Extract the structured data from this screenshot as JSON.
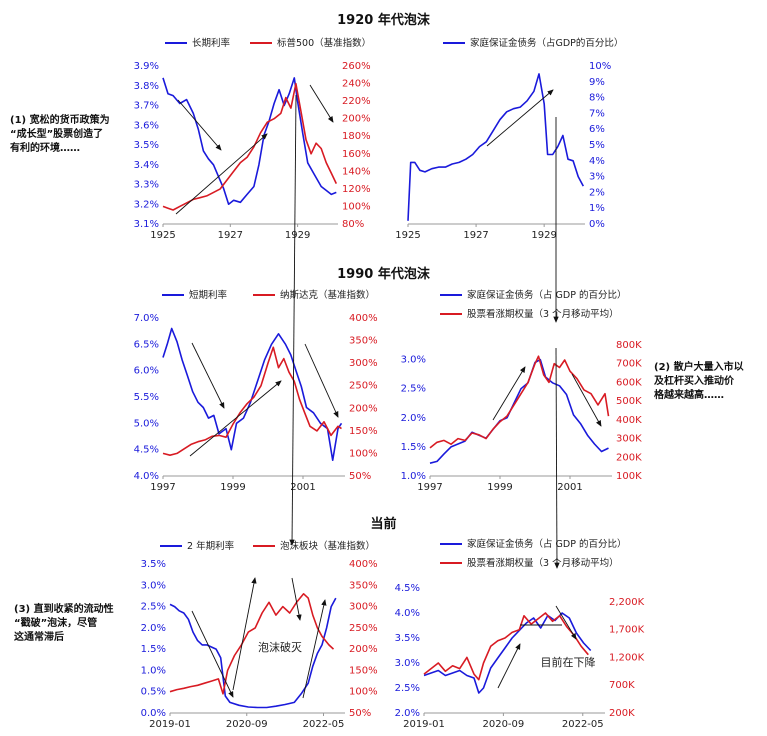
{
  "sections": {
    "s1920": "1920 年代泡沫",
    "s1990": "1990 年代泡沫",
    "now": "当前"
  },
  "side_notes": [
    {
      "lines": [
        "(1) 宽松的货币政策为",
        "“成长型”股票创造了",
        "有利的环境……"
      ]
    },
    {
      "lines": [
        "(2) 散户大量入市以",
        "及杠杆买入推动价",
        "格越来越高……"
      ]
    },
    {
      "lines": [
        "(3) 直到收紧的流动性",
        "“戳破”泡沫，尽管",
        "这通常滞后"
      ]
    }
  ],
  "colors": {
    "blue": "#1a1adb",
    "red": "#d81b23",
    "black": "#111111"
  },
  "chart_data": [
    {
      "type": "line",
      "legend": [
        "长期利率",
        "标普500（基准指数）"
      ],
      "x_ticks": [
        "1925",
        "1927",
        "1929"
      ],
      "xlim": [
        1925,
        1930.2
      ],
      "left_axis": {
        "ticks": [
          "3.1%",
          "3.2%",
          "3.3%",
          "3.4%",
          "3.5%",
          "3.6%",
          "3.7%",
          "3.8%",
          "3.9%"
        ],
        "ylim": [
          3.1,
          3.9
        ]
      },
      "right_axis": {
        "ticks": [
          "80%",
          "100%",
          "120%",
          "140%",
          "160%",
          "180%",
          "200%",
          "220%",
          "240%",
          "260%"
        ],
        "ylim": [
          80,
          260
        ]
      },
      "series": [
        {
          "name": "长期利率",
          "axis": "left",
          "color": "blue",
          "x": [
            1925.0,
            1925.15,
            1925.3,
            1925.5,
            1925.7,
            1925.9,
            1926.05,
            1926.2,
            1926.35,
            1926.5,
            1926.65,
            1926.8,
            1926.95,
            1927.1,
            1927.3,
            1927.5,
            1927.7,
            1927.85,
            1928.0,
            1928.15,
            1928.3,
            1928.45,
            1928.6,
            1928.75,
            1928.9,
            1929.0,
            1929.15,
            1929.3,
            1929.5,
            1929.7,
            1929.85,
            1930.0,
            1930.15
          ],
          "y": [
            3.84,
            3.76,
            3.75,
            3.71,
            3.73,
            3.66,
            3.58,
            3.47,
            3.43,
            3.4,
            3.34,
            3.28,
            3.2,
            3.22,
            3.21,
            3.25,
            3.29,
            3.4,
            3.55,
            3.62,
            3.71,
            3.78,
            3.7,
            3.76,
            3.84,
            3.72,
            3.56,
            3.41,
            3.35,
            3.29,
            3.27,
            3.25,
            3.26
          ]
        },
        {
          "name": "标普500（基准指数）",
          "axis": "right",
          "color": "red",
          "x": [
            1925.0,
            1925.15,
            1925.3,
            1925.5,
            1925.7,
            1925.9,
            1926.1,
            1926.3,
            1926.5,
            1926.7,
            1926.9,
            1927.1,
            1927.3,
            1927.5,
            1927.7,
            1927.9,
            1928.1,
            1928.3,
            1928.5,
            1928.65,
            1928.8,
            1928.95,
            1929.1,
            1929.25,
            1929.4,
            1929.55,
            1929.7,
            1929.85,
            1930.0,
            1930.15
          ],
          "y": [
            100,
            98,
            96,
            100,
            104,
            108,
            110,
            112,
            116,
            120,
            130,
            140,
            150,
            156,
            168,
            184,
            196,
            200,
            206,
            224,
            212,
            240,
            208,
            176,
            160,
            172,
            166,
            150,
            138,
            126
          ]
        }
      ]
    },
    {
      "type": "line",
      "legend": [
        "家庭保证金债务（占GDP的百分比）"
      ],
      "x_ticks": [
        "1925",
        "1927",
        "1929"
      ],
      "xlim": [
        1925,
        1930.2
      ],
      "right_axis": {
        "ticks": [
          "0%",
          "1%",
          "2%",
          "3%",
          "4%",
          "5%",
          "6%",
          "7%",
          "8%",
          "9%",
          "10%"
        ],
        "ylim": [
          0,
          10
        ]
      },
      "series": [
        {
          "name": "家庭保证金债务（占GDP的百分比）",
          "axis": "right",
          "color": "blue",
          "x": [
            1925.0,
            1925.08,
            1925.2,
            1925.35,
            1925.5,
            1925.7,
            1925.9,
            1926.1,
            1926.3,
            1926.5,
            1926.7,
            1926.9,
            1927.1,
            1927.3,
            1927.5,
            1927.7,
            1927.9,
            1928.1,
            1928.3,
            1928.5,
            1928.7,
            1928.85,
            1929.0,
            1929.1,
            1929.25,
            1929.4,
            1929.55,
            1929.7,
            1929.85,
            1930.0,
            1930.15
          ],
          "y": [
            0.2,
            3.9,
            3.9,
            3.4,
            3.3,
            3.5,
            3.6,
            3.6,
            3.8,
            3.9,
            4.1,
            4.4,
            4.9,
            5.2,
            5.9,
            6.6,
            7.1,
            7.3,
            7.4,
            7.8,
            8.4,
            9.5,
            7.6,
            4.4,
            4.4,
            4.9,
            5.6,
            4.1,
            4.0,
            3.0,
            2.4
          ]
        }
      ]
    },
    {
      "type": "line",
      "legend": [
        "短期利率",
        "纳斯达克（基准指数）"
      ],
      "x_ticks": [
        "1997",
        "1999",
        "2001"
      ],
      "xlim": [
        1997,
        2002.2
      ],
      "left_axis": {
        "ticks": [
          "4.0%",
          "4.5%",
          "5.0%",
          "5.5%",
          "6.0%",
          "6.5%",
          "7.0%"
        ],
        "ylim": [
          4.0,
          7.0
        ]
      },
      "right_axis": {
        "ticks": [
          "50%",
          "100%",
          "150%",
          "200%",
          "250%",
          "300%",
          "350%",
          "400%"
        ],
        "ylim": [
          50,
          400
        ]
      },
      "series": [
        {
          "name": "短期利率",
          "axis": "left",
          "color": "blue",
          "x": [
            1997.0,
            1997.12,
            1997.25,
            1997.4,
            1997.55,
            1997.7,
            1997.85,
            1998.0,
            1998.15,
            1998.3,
            1998.45,
            1998.6,
            1998.8,
            1998.95,
            1999.1,
            1999.3,
            1999.5,
            1999.7,
            1999.9,
            2000.1,
            2000.3,
            2000.5,
            2000.65,
            2000.8,
            2000.95,
            2001.1,
            2001.3,
            2001.5,
            2001.7,
            2001.85,
            2002.0,
            2002.1
          ],
          "y": [
            6.25,
            6.5,
            6.8,
            6.55,
            6.2,
            5.9,
            5.6,
            5.4,
            5.3,
            5.1,
            5.15,
            4.8,
            4.9,
            4.5,
            5.0,
            5.1,
            5.4,
            5.8,
            6.2,
            6.5,
            6.7,
            6.5,
            6.3,
            6.0,
            5.7,
            5.3,
            5.2,
            5.0,
            4.9,
            4.3,
            4.9,
            5.0
          ]
        },
        {
          "name": "纳斯达克（基准指数）",
          "axis": "right",
          "color": "red",
          "x": [
            1997.0,
            1997.2,
            1997.4,
            1997.6,
            1997.8,
            1998.0,
            1998.2,
            1998.4,
            1998.6,
            1998.8,
            1999.0,
            1999.2,
            1999.4,
            1999.6,
            1999.8,
            2000.0,
            2000.15,
            2000.3,
            2000.45,
            2000.6,
            2000.75,
            2000.9,
            2001.05,
            2001.2,
            2001.4,
            2001.6,
            2001.8,
            2002.0,
            2002.1
          ],
          "y": [
            100,
            96,
            100,
            110,
            120,
            126,
            130,
            138,
            140,
            136,
            165,
            190,
            210,
            225,
            250,
            300,
            335,
            290,
            310,
            280,
            260,
            220,
            190,
            160,
            150,
            170,
            140,
            160,
            155
          ]
        }
      ]
    },
    {
      "type": "line",
      "legend": [
        "家庭保证金债务（占 GDP 的百分比）",
        "股票看涨期权量（3 个月移动平均）"
      ],
      "x_ticks": [
        "1997",
        "1999",
        "2001"
      ],
      "xlim": [
        1997,
        2002.2
      ],
      "left_axis": {
        "ticks": [
          "1.0%",
          "1.5%",
          "2.0%",
          "2.5%",
          "3.0%"
        ],
        "ylim": [
          1.0,
          3.25
        ]
      },
      "right_axis": {
        "ticks": [
          "100K",
          "200K",
          "300K",
          "400K",
          "500K",
          "600K",
          "700K",
          "800K"
        ],
        "ylim": [
          100,
          800
        ]
      },
      "series": [
        {
          "name": "家庭保证金债务（占 GDP 的百分比）",
          "axis": "left",
          "color": "blue",
          "x": [
            1997.0,
            1997.2,
            1997.4,
            1997.6,
            1997.8,
            1998.0,
            1998.2,
            1998.4,
            1998.6,
            1998.8,
            1999.0,
            1999.2,
            1999.4,
            1999.6,
            1999.8,
            2000.0,
            2000.15,
            2000.3,
            2000.5,
            2000.7,
            2000.9,
            2001.1,
            2001.3,
            2001.5,
            2001.7,
            2001.9,
            2002.1
          ],
          "y": [
            1.22,
            1.25,
            1.38,
            1.5,
            1.55,
            1.6,
            1.75,
            1.7,
            1.65,
            1.8,
            1.95,
            2.0,
            2.25,
            2.5,
            2.6,
            2.95,
            3.0,
            2.7,
            2.6,
            2.55,
            2.4,
            2.05,
            1.9,
            1.7,
            1.55,
            1.42,
            1.48
          ]
        },
        {
          "name": "股票看涨期权量（3 个月移动平均）",
          "axis": "right",
          "color": "red",
          "x": [
            1997.0,
            1997.2,
            1997.4,
            1997.6,
            1997.8,
            1998.0,
            1998.2,
            1998.4,
            1998.6,
            1998.8,
            1999.0,
            1999.2,
            1999.4,
            1999.6,
            1999.8,
            2000.0,
            2000.1,
            2000.25,
            2000.4,
            2000.55,
            2000.7,
            2000.85,
            2001.0,
            2001.2,
            2001.4,
            2001.6,
            2001.8,
            2002.0,
            2002.1
          ],
          "y": [
            250,
            280,
            290,
            270,
            300,
            290,
            330,
            320,
            300,
            350,
            390,
            420,
            480,
            540,
            600,
            700,
            740,
            640,
            600,
            700,
            680,
            720,
            660,
            620,
            560,
            540,
            480,
            540,
            420
          ]
        }
      ]
    },
    {
      "type": "line",
      "legend": [
        "2 年期利率",
        "泡沫板块（基准指数）"
      ],
      "x_ticks": [
        "2019-01",
        "2020-09",
        "2022-05"
      ],
      "xlim": [
        2019.0,
        2022.8
      ],
      "left_axis": {
        "ticks": [
          "0.0%",
          "0.5%",
          "1.0%",
          "1.5%",
          "2.0%",
          "2.5%",
          "3.0%",
          "3.5%"
        ],
        "ylim": [
          0,
          3.5
        ]
      },
      "right_axis": {
        "ticks": [
          "50%",
          "100%",
          "150%",
          "200%",
          "250%",
          "300%",
          "350%",
          "400%"
        ],
        "ylim": [
          50,
          400
        ]
      },
      "annotations": [
        "泡沫破灭"
      ],
      "series": [
        {
          "name": "2 年期利率",
          "axis": "left",
          "color": "blue",
          "x": [
            2019.0,
            2019.1,
            2019.2,
            2019.3,
            2019.4,
            2019.5,
            2019.6,
            2019.7,
            2019.8,
            2019.9,
            2020.0,
            2020.1,
            2020.2,
            2020.3,
            2020.5,
            2020.7,
            2020.9,
            2021.1,
            2021.3,
            2021.5,
            2021.7,
            2021.85,
            2022.0,
            2022.1,
            2022.2,
            2022.3,
            2022.4,
            2022.5,
            2022.6
          ],
          "y": [
            2.55,
            2.5,
            2.4,
            2.35,
            2.2,
            1.9,
            1.7,
            1.6,
            1.6,
            1.55,
            1.5,
            1.3,
            0.4,
            0.25,
            0.18,
            0.14,
            0.13,
            0.13,
            0.16,
            0.2,
            0.25,
            0.45,
            0.7,
            1.1,
            1.4,
            1.6,
            2.0,
            2.5,
            2.7
          ]
        },
        {
          "name": "泡沫板块（基准指数）",
          "axis": "right",
          "color": "red",
          "x": [
            2019.0,
            2019.15,
            2019.3,
            2019.45,
            2019.6,
            2019.75,
            2019.9,
            2020.05,
            2020.15,
            2020.25,
            2020.4,
            2020.55,
            2020.7,
            2020.85,
            2021.0,
            2021.15,
            2021.3,
            2021.45,
            2021.6,
            2021.75,
            2021.9,
            2022.0,
            2022.1,
            2022.2,
            2022.3,
            2022.45,
            2022.55
          ],
          "y": [
            100,
            105,
            108,
            112,
            115,
            120,
            125,
            130,
            95,
            150,
            185,
            210,
            240,
            250,
            285,
            310,
            280,
            300,
            285,
            310,
            330,
            320,
            280,
            250,
            230,
            210,
            200
          ]
        }
      ]
    },
    {
      "type": "line",
      "legend": [
        "家庭保证金债务（占 GDP 的百分比）",
        "股票看涨期权量（3 个月移动平均）"
      ],
      "x_ticks": [
        "2019-01",
        "2020-09",
        "2022-05"
      ],
      "xlim": [
        2019.0,
        2022.8
      ],
      "left_axis": {
        "ticks": [
          "2.0%",
          "2.5%",
          "3.0%",
          "3.5%",
          "4.0%",
          "4.5%"
        ],
        "ylim": [
          2.0,
          4.5
        ]
      },
      "right_axis": {
        "ticks": [
          "200K",
          "700K",
          "1,200K",
          "1,700K",
          "2,200K"
        ],
        "ylim": [
          200,
          2450
        ]
      },
      "annotations": [
        "目前在下降"
      ],
      "series": [
        {
          "name": "家庭保证金债务（占 GDP 的百分比）",
          "axis": "left",
          "color": "blue",
          "x": [
            2019.0,
            2019.15,
            2019.3,
            2019.45,
            2019.6,
            2019.75,
            2019.9,
            2020.05,
            2020.15,
            2020.25,
            2020.4,
            2020.55,
            2020.7,
            2020.85,
            2021.0,
            2021.15,
            2021.3,
            2021.45,
            2021.6,
            2021.75,
            2021.9,
            2022.05,
            2022.2,
            2022.35,
            2022.5
          ],
          "y": [
            2.75,
            2.8,
            2.85,
            2.75,
            2.8,
            2.85,
            2.75,
            2.7,
            2.4,
            2.5,
            2.9,
            3.1,
            3.3,
            3.5,
            3.65,
            3.8,
            3.9,
            3.7,
            3.95,
            3.85,
            4.0,
            3.9,
            3.6,
            3.4,
            3.25
          ]
        },
        {
          "name": "股票看涨期权量（3 个月移动平均）",
          "axis": "right",
          "color": "red",
          "x": [
            2019.0,
            2019.15,
            2019.3,
            2019.45,
            2019.6,
            2019.75,
            2019.9,
            2020.05,
            2020.15,
            2020.25,
            2020.4,
            2020.55,
            2020.7,
            2020.85,
            2021.0,
            2021.1,
            2021.25,
            2021.4,
            2021.55,
            2021.7,
            2021.85,
            2022.0,
            2022.15,
            2022.3,
            2022.45
          ],
          "y": [
            900,
            1000,
            1100,
            950,
            1050,
            1000,
            1200,
            900,
            800,
            1100,
            1400,
            1500,
            1550,
            1650,
            1700,
            1950,
            1800,
            1900,
            2000,
            1850,
            1950,
            1750,
            1600,
            1400,
            1250
          ]
        }
      ]
    }
  ]
}
